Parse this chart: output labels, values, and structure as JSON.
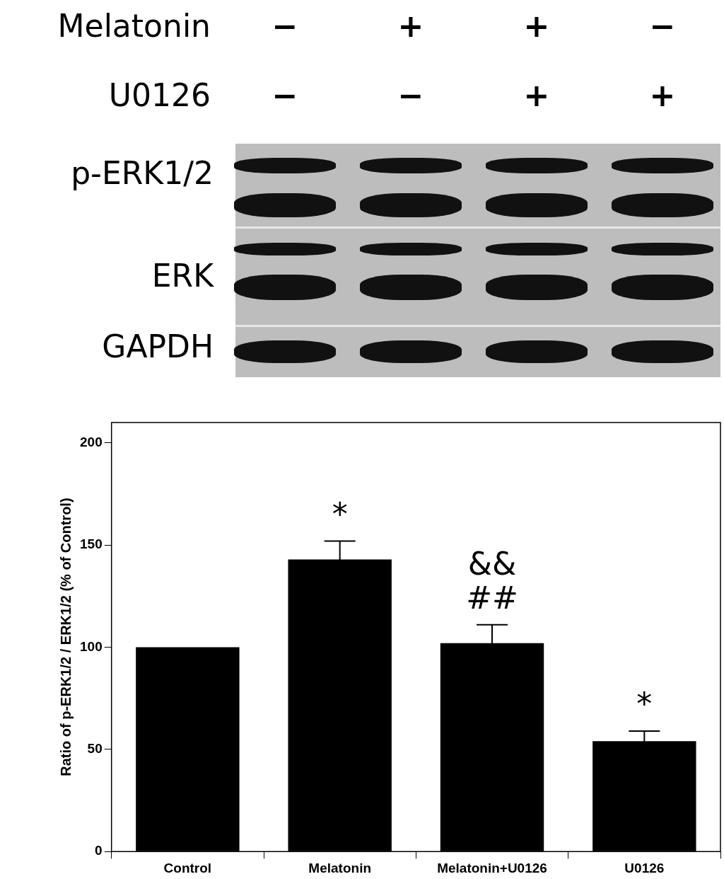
{
  "chart_data": {
    "type": "bar",
    "ylabel": "Ratio of p-ERK1/2 / ERK1/2 (% of Control)",
    "categories": [
      "Control",
      "Melatonin",
      "Melatonin+U0126",
      "U0126"
    ],
    "values": [
      100,
      143,
      102,
      54
    ],
    "errors": [
      null,
      9,
      9,
      5
    ],
    "color": "#000000",
    "ylim": [
      0,
      210
    ],
    "yticks": [
      0,
      50,
      100,
      150,
      200
    ],
    "annotations": [
      "Melatonin",
      "−",
      "+",
      "+",
      "−",
      "U0126",
      "−",
      "−",
      "+",
      "+",
      "p-ERK1/2",
      "ERK",
      "GAPDH",
      "*",
      "&&",
      "##",
      "*"
    ]
  }
}
